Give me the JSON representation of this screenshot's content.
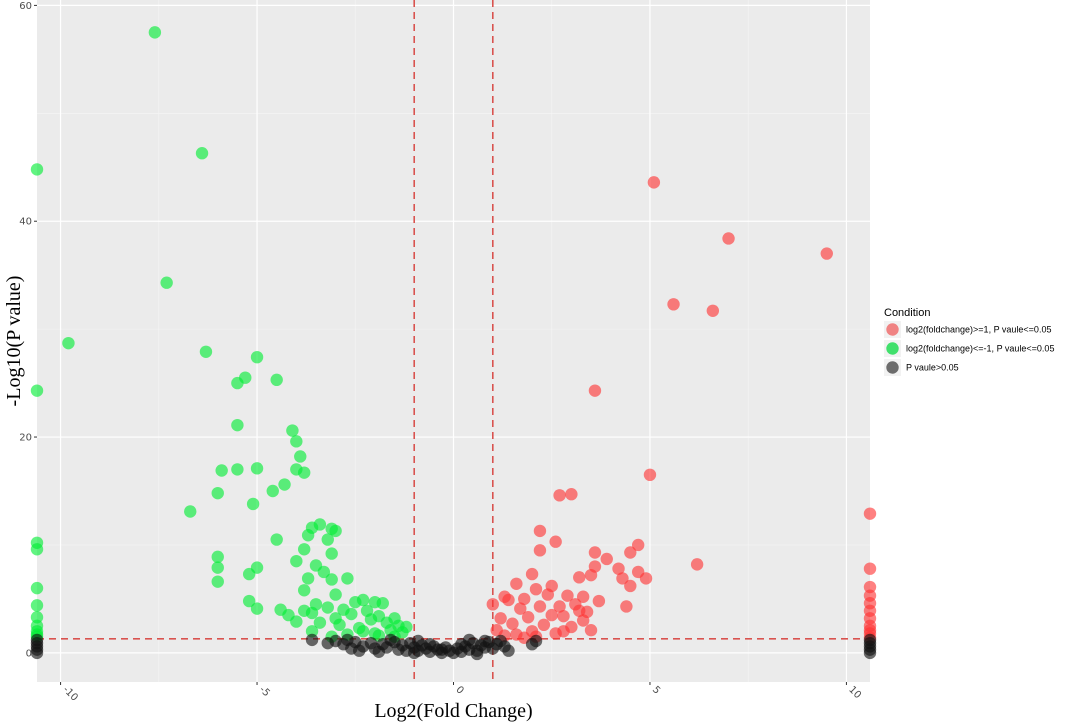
{
  "chart_data": {
    "type": "scatter",
    "title": "",
    "xlabel": "Log2(Fold Change)",
    "ylabel": "-Log10(P value)",
    "xlim": [
      -10.6,
      10.6
    ],
    "ylim": [
      -2.7,
      60.5
    ],
    "x_ticks": [
      -10,
      -5,
      0,
      5,
      10
    ],
    "x_tick_labels": [
      "-10",
      "-5",
      "0",
      "5",
      "10"
    ],
    "y_ticks": [
      0,
      20,
      40,
      60
    ],
    "y_tick_labels": [
      "0",
      "20",
      "40",
      "60"
    ],
    "grid": true,
    "thresholds": {
      "x": [
        -1,
        1
      ],
      "y": 1.3
    },
    "legend": {
      "title": "Condition",
      "position": "right",
      "entries": [
        {
          "key": "up",
          "label": "log2(foldchange)>=1, P vaule<=0.05",
          "color": "#f07070"
        },
        {
          "key": "down",
          "label": "log2(foldchange)<=-1, P vaule<=0.05",
          "color": "#22dd55"
        },
        {
          "key": "ns",
          "label": "P vaule>0.05",
          "color": "#555555"
        }
      ]
    },
    "series": [
      {
        "key": "down",
        "color": "#00ee33",
        "points": [
          [
            -7.6,
            57.5
          ],
          [
            -6.4,
            46.3
          ],
          [
            -10.6,
            44.8
          ],
          [
            -7.3,
            34.3
          ],
          [
            -9.8,
            28.7
          ],
          [
            -6.3,
            27.9
          ],
          [
            -5.0,
            27.4
          ],
          [
            -5.3,
            25.5
          ],
          [
            -4.5,
            25.3
          ],
          [
            -10.6,
            24.3
          ],
          [
            -5.5,
            25.0
          ],
          [
            -4.1,
            20.6
          ],
          [
            -5.5,
            21.1
          ],
          [
            -4.0,
            19.6
          ],
          [
            -3.9,
            18.2
          ],
          [
            -4.0,
            17.0
          ],
          [
            -3.8,
            16.7
          ],
          [
            -5.0,
            17.1
          ],
          [
            -5.5,
            17.0
          ],
          [
            -5.9,
            16.9
          ],
          [
            -4.3,
            15.6
          ],
          [
            -4.6,
            15.0
          ],
          [
            -6.0,
            14.8
          ],
          [
            -5.1,
            13.8
          ],
          [
            -6.7,
            13.1
          ],
          [
            -3.4,
            11.9
          ],
          [
            -3.1,
            11.5
          ],
          [
            -3.0,
            11.3
          ],
          [
            -3.6,
            11.6
          ],
          [
            -3.7,
            10.9
          ],
          [
            -3.2,
            10.5
          ],
          [
            -4.5,
            10.5
          ],
          [
            -10.6,
            10.2
          ],
          [
            -10.6,
            9.6
          ],
          [
            -3.8,
            9.6
          ],
          [
            -3.1,
            9.2
          ],
          [
            -6.0,
            8.9
          ],
          [
            -3.5,
            8.1
          ],
          [
            -4.0,
            8.5
          ],
          [
            -6.0,
            7.9
          ],
          [
            -5.0,
            7.9
          ],
          [
            -3.3,
            7.5
          ],
          [
            -5.2,
            7.3
          ],
          [
            -6.0,
            6.6
          ],
          [
            -3.7,
            6.9
          ],
          [
            -3.1,
            6.8
          ],
          [
            -2.7,
            6.9
          ],
          [
            -10.6,
            6.0
          ],
          [
            -3.8,
            5.8
          ],
          [
            -3.0,
            5.4
          ],
          [
            -5.2,
            4.8
          ],
          [
            -2.5,
            4.7
          ],
          [
            -2.3,
            4.9
          ],
          [
            -2.0,
            4.7
          ],
          [
            -1.8,
            4.6
          ],
          [
            -10.6,
            4.4
          ],
          [
            -5.0,
            4.1
          ],
          [
            -3.5,
            4.5
          ],
          [
            -3.2,
            4.2
          ],
          [
            -2.8,
            4.0
          ],
          [
            -4.4,
            4.0
          ],
          [
            -3.8,
            3.9
          ],
          [
            -3.6,
            3.7
          ],
          [
            -4.2,
            3.5
          ],
          [
            -2.6,
            3.6
          ],
          [
            -2.2,
            3.9
          ],
          [
            -1.9,
            3.4
          ],
          [
            -1.5,
            3.2
          ],
          [
            -3.0,
            3.2
          ],
          [
            -10.6,
            3.3
          ],
          [
            -2.1,
            3.1
          ],
          [
            -1.7,
            2.8
          ],
          [
            -1.4,
            2.5
          ],
          [
            -1.2,
            2.4
          ],
          [
            -3.4,
            2.8
          ],
          [
            -2.9,
            2.6
          ],
          [
            -2.4,
            2.3
          ],
          [
            -4.0,
            2.9
          ],
          [
            -10.6,
            2.5
          ],
          [
            -1.6,
            2.1
          ],
          [
            -1.3,
            1.9
          ],
          [
            -2.7,
            1.7
          ],
          [
            -3.6,
            2.0
          ],
          [
            -2.0,
            1.8
          ],
          [
            -10.6,
            1.7
          ],
          [
            -10.6,
            2.0
          ],
          [
            -2.3,
            2.0
          ],
          [
            -1.9,
            1.6
          ],
          [
            -3.1,
            1.5
          ],
          [
            -1.5,
            1.5
          ],
          [
            -10.6,
            1.5
          ]
        ]
      },
      {
        "key": "up",
        "color": "#ff3333",
        "points": [
          [
            5.1,
            43.6
          ],
          [
            7.0,
            38.4
          ],
          [
            9.5,
            37.0
          ],
          [
            5.6,
            32.3
          ],
          [
            6.6,
            31.7
          ],
          [
            3.6,
            24.3
          ],
          [
            5.0,
            16.5
          ],
          [
            3.0,
            14.7
          ],
          [
            2.7,
            14.6
          ],
          [
            2.2,
            11.3
          ],
          [
            10.6,
            12.9
          ],
          [
            4.7,
            10.0
          ],
          [
            2.6,
            10.3
          ],
          [
            3.6,
            9.3
          ],
          [
            4.5,
            9.3
          ],
          [
            3.9,
            8.7
          ],
          [
            2.2,
            9.5
          ],
          [
            6.2,
            8.2
          ],
          [
            3.6,
            8.0
          ],
          [
            4.2,
            7.8
          ],
          [
            4.7,
            7.5
          ],
          [
            3.5,
            7.2
          ],
          [
            4.3,
            6.9
          ],
          [
            3.2,
            7.0
          ],
          [
            4.9,
            6.9
          ],
          [
            4.5,
            6.2
          ],
          [
            2.0,
            7.3
          ],
          [
            2.5,
            6.2
          ],
          [
            1.6,
            6.4
          ],
          [
            1.3,
            5.2
          ],
          [
            2.1,
            5.9
          ],
          [
            3.3,
            5.2
          ],
          [
            10.6,
            7.8
          ],
          [
            10.6,
            6.1
          ],
          [
            10.6,
            5.3
          ],
          [
            2.4,
            5.4
          ],
          [
            2.9,
            5.3
          ],
          [
            1.8,
            5.0
          ],
          [
            1.4,
            4.9
          ],
          [
            3.7,
            4.8
          ],
          [
            3.1,
            4.5
          ],
          [
            2.7,
            4.3
          ],
          [
            1.0,
            4.5
          ],
          [
            2.2,
            4.3
          ],
          [
            4.4,
            4.3
          ],
          [
            3.4,
            3.8
          ],
          [
            2.5,
            3.5
          ],
          [
            10.6,
            4.6
          ],
          [
            10.6,
            3.9
          ],
          [
            1.9,
            3.3
          ],
          [
            1.2,
            3.2
          ],
          [
            2.8,
            3.4
          ],
          [
            3.3,
            3.0
          ],
          [
            2.3,
            2.6
          ],
          [
            1.5,
            2.7
          ],
          [
            10.6,
            3.2
          ],
          [
            10.6,
            2.5
          ],
          [
            3.0,
            2.4
          ],
          [
            2.0,
            2.0
          ],
          [
            1.1,
            2.1
          ],
          [
            2.6,
            1.8
          ],
          [
            1.6,
            1.7
          ],
          [
            10.6,
            1.8
          ],
          [
            10.6,
            1.4
          ],
          [
            3.5,
            2.1
          ],
          [
            2.1,
            1.5
          ],
          [
            1.3,
            1.6
          ],
          [
            2.8,
            2.0
          ],
          [
            1.8,
            1.4
          ],
          [
            10.6,
            2.1
          ],
          [
            3.2,
            3.9
          ],
          [
            1.7,
            4.1
          ]
        ]
      },
      {
        "key": "ns",
        "color": "#111111",
        "points": [
          [
            -3.6,
            1.2
          ],
          [
            -3.2,
            0.9
          ],
          [
            -3.0,
            1.1
          ],
          [
            -2.8,
            0.8
          ],
          [
            -2.5,
            1.0
          ],
          [
            -2.3,
            0.6
          ],
          [
            -2.1,
            0.9
          ],
          [
            -2.0,
            0.4
          ],
          [
            -1.8,
            0.8
          ],
          [
            -1.7,
            0.5
          ],
          [
            -1.5,
            1.0
          ],
          [
            -1.4,
            0.3
          ],
          [
            -1.3,
            0.7
          ],
          [
            -1.1,
            0.9
          ],
          [
            -1.0,
            0.5
          ],
          [
            -0.9,
            0.2
          ],
          [
            -0.8,
            0.7
          ],
          [
            -0.7,
            0.4
          ],
          [
            -0.6,
            0.1
          ],
          [
            -0.5,
            0.6
          ],
          [
            -0.4,
            0.3
          ],
          [
            -0.3,
            0.0
          ],
          [
            -0.2,
            0.5
          ],
          [
            -0.1,
            0.2
          ],
          [
            0.0,
            0.0
          ],
          [
            0.1,
            0.4
          ],
          [
            0.2,
            0.1
          ],
          [
            0.3,
            0.6
          ],
          [
            0.4,
            0.3
          ],
          [
            0.5,
            0.9
          ],
          [
            0.6,
            0.2
          ],
          [
            0.7,
            0.7
          ],
          [
            0.8,
            0.5
          ],
          [
            0.9,
            1.0
          ],
          [
            1.0,
            0.4
          ],
          [
            1.1,
            0.8
          ],
          [
            1.2,
            1.1
          ],
          [
            1.3,
            0.6
          ],
          [
            2.0,
            0.8
          ],
          [
            2.1,
            1.1
          ],
          [
            -2.6,
            0.4
          ],
          [
            -1.9,
            0.1
          ],
          [
            -1.2,
            0.2
          ],
          [
            -0.6,
            0.8
          ],
          [
            0.2,
            0.8
          ],
          [
            0.8,
            1.1
          ],
          [
            -2.7,
            1.2
          ],
          [
            -1.6,
            1.2
          ],
          [
            -0.9,
            1.1
          ],
          [
            0.4,
            1.2
          ],
          [
            -10.6,
            0.0
          ],
          [
            -10.6,
            0.3
          ],
          [
            -10.6,
            0.6
          ],
          [
            -10.6,
            0.9
          ],
          [
            -10.6,
            1.2
          ],
          [
            10.6,
            0.0
          ],
          [
            10.6,
            0.3
          ],
          [
            10.6,
            0.6
          ],
          [
            10.6,
            0.9
          ],
          [
            10.6,
            1.2
          ],
          [
            -1.0,
            0.0
          ],
          [
            -0.3,
            0.3
          ],
          [
            0.6,
            -0.1
          ],
          [
            -2.4,
            0.2
          ],
          [
            1.4,
            0.2
          ]
        ]
      }
    ]
  }
}
